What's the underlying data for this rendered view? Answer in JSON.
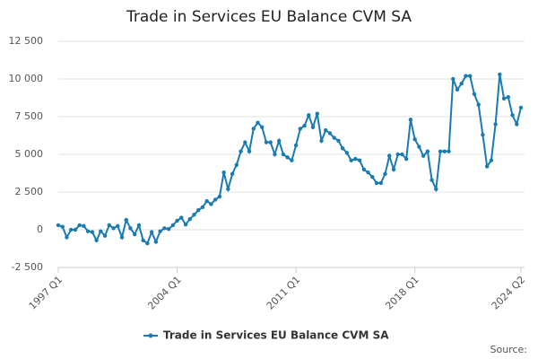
{
  "chart_data": {
    "type": "line",
    "title": "Trade in Services EU Balance CVM SA",
    "source": "Source:",
    "categories": [
      "1997 Q1",
      null,
      null,
      null,
      null,
      null,
      null,
      null,
      null,
      null,
      null,
      null,
      null,
      null,
      null,
      null,
      null,
      null,
      null,
      null,
      null,
      null,
      null,
      null,
      null,
      null,
      null,
      null,
      "2004 Q1",
      null,
      null,
      null,
      null,
      null,
      null,
      null,
      null,
      null,
      null,
      null,
      null,
      null,
      null,
      null,
      null,
      null,
      null,
      null,
      null,
      null,
      null,
      null,
      null,
      null,
      null,
      null,
      "2011 Q1",
      null,
      null,
      null,
      null,
      null,
      null,
      null,
      null,
      null,
      null,
      null,
      null,
      null,
      null,
      null,
      null,
      null,
      null,
      null,
      null,
      null,
      null,
      null,
      null,
      null,
      null,
      null,
      "2018 Q1",
      null,
      null,
      null,
      null,
      null,
      null,
      null,
      null,
      null,
      null,
      null,
      null,
      null,
      null,
      null,
      null,
      null,
      null,
      null,
      null,
      null,
      null,
      null,
      null,
      "2024 Q2"
    ],
    "series": [
      {
        "name": "Trade in Services EU Balance CVM SA",
        "color": "#1a7bb0",
        "values": [
          300,
          200,
          -500,
          0,
          0,
          300,
          250,
          -100,
          -150,
          -700,
          -100,
          -400,
          300,
          100,
          250,
          -500,
          650,
          100,
          -300,
          300,
          -700,
          -900,
          -150,
          -800,
          -100,
          100,
          50,
          300,
          600,
          800,
          350,
          700,
          1000,
          1300,
          1500,
          1900,
          1700,
          2000,
          2200,
          3800,
          2700,
          3700,
          4300,
          5200,
          5800,
          5200,
          6700,
          7100,
          6800,
          5800,
          5800,
          5000,
          5900,
          5000,
          4800,
          4600,
          5600,
          6700,
          6900,
          7600,
          6800,
          7700,
          5900,
          6600,
          6400,
          6100,
          5900,
          5400,
          5100,
          4600,
          4700,
          4600,
          4000,
          3800,
          3500,
          3100,
          3100,
          3700,
          4900,
          4000,
          5000,
          5000,
          4700,
          7300,
          6000,
          5500,
          4900,
          5200,
          3300,
          2700,
          5200,
          5200,
          5200,
          10000,
          9300,
          9700,
          10200,
          10200,
          9000,
          8300,
          6300,
          4200,
          4600,
          7000,
          10300,
          8700,
          8800,
          7600,
          7000,
          8100
        ]
      }
    ],
    "ylim": [
      -2500,
      12500
    ],
    "yticks": [
      {
        "value": -2500,
        "label": "-2 500"
      },
      0,
      {
        "value": 2500,
        "label": "2 500"
      },
      {
        "value": 5000,
        "label": "5 000"
      },
      {
        "value": 7500,
        "label": "7 500"
      },
      {
        "value": 10000,
        "label": "10 000"
      },
      {
        "value": 12500,
        "label": "12 500"
      }
    ],
    "grid": true,
    "legend": "bottom"
  }
}
